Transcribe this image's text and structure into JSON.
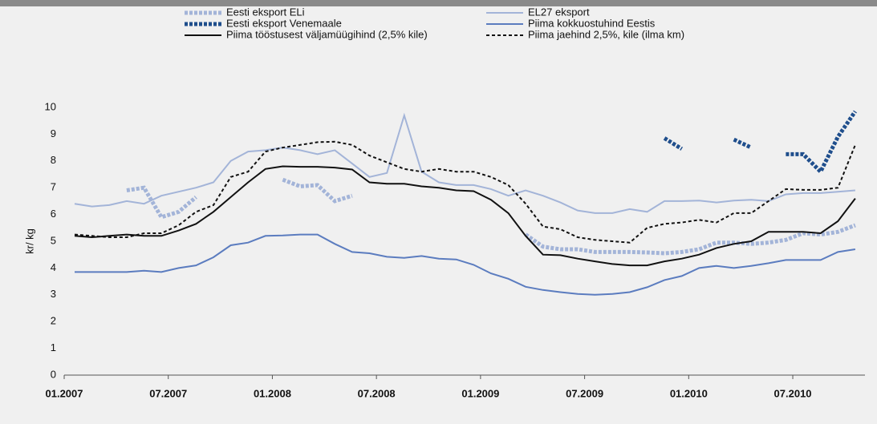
{
  "chart_data": {
    "type": "line",
    "y_label": "kr/ kg",
    "categories": [
      "01.2007",
      null,
      null,
      null,
      null,
      null,
      "07.2007",
      null,
      null,
      null,
      null,
      null,
      "01.2008",
      null,
      null,
      null,
      null,
      null,
      "07.2008",
      null,
      null,
      null,
      null,
      null,
      "01.2009",
      null,
      null,
      null,
      null,
      null,
      "07.2009",
      null,
      null,
      null,
      null,
      null,
      "01.2010",
      null,
      null,
      null,
      null,
      null,
      "07.2010",
      null,
      null,
      null
    ],
    "ylim": [
      0,
      10
    ],
    "yticks": [
      0,
      1,
      2,
      3,
      4,
      5,
      6,
      7,
      8,
      9,
      10
    ],
    "series": [
      {
        "name": "Eesti eksport ELi",
        "color": "#a3b4d8",
        "style": "dotted",
        "values": [
          null,
          null,
          null,
          6.9,
          7.0,
          5.9,
          6.1,
          6.65,
          null,
          null,
          null,
          null,
          7.3,
          7.05,
          7.1,
          6.5,
          6.7,
          null,
          null,
          null,
          null,
          null,
          null,
          null,
          null,
          null,
          5.25,
          4.8,
          4.7,
          4.7,
          4.6,
          4.6,
          4.6,
          4.58,
          4.55,
          4.6,
          4.7,
          4.95,
          4.95,
          4.9,
          4.95,
          5.05,
          5.3,
          5.25,
          5.35,
          5.6
        ]
      },
      {
        "name": "EL27 eksport",
        "color": "#a3b4d8",
        "style": "solid",
        "values": [
          6.4,
          6.3,
          6.35,
          6.5,
          6.4,
          6.7,
          6.85,
          7.0,
          7.2,
          8.0,
          8.35,
          8.4,
          8.5,
          8.4,
          8.25,
          8.4,
          7.9,
          7.4,
          7.55,
          9.7,
          7.6,
          7.2,
          7.1,
          7.1,
          6.95,
          6.7,
          6.9,
          6.7,
          6.45,
          6.15,
          6.05,
          6.05,
          6.2,
          6.1,
          6.5,
          6.5,
          6.52,
          6.45,
          6.52,
          6.55,
          6.5,
          6.75,
          6.8,
          6.8,
          6.85,
          6.9
        ]
      },
      {
        "name": "Eesti eksport Venemaale",
        "color": "#1f4e8c",
        "style": "dotted",
        "values": [
          null,
          null,
          null,
          null,
          null,
          null,
          null,
          null,
          null,
          null,
          null,
          null,
          null,
          null,
          null,
          null,
          null,
          null,
          null,
          null,
          null,
          null,
          null,
          null,
          null,
          null,
          null,
          null,
          null,
          null,
          null,
          null,
          null,
          null,
          8.85,
          8.45,
          null,
          null,
          8.8,
          8.5,
          null,
          8.25,
          8.25,
          7.6,
          8.9,
          9.85
        ]
      },
      {
        "name": "Piima kokkuostuhind Eestis",
        "color": "#5b7cbf",
        "style": "solid",
        "values": [
          3.85,
          3.85,
          3.85,
          3.85,
          3.9,
          3.85,
          4.0,
          4.1,
          4.4,
          4.85,
          4.95,
          5.2,
          5.22,
          5.25,
          5.25,
          4.9,
          4.6,
          4.55,
          4.42,
          4.38,
          4.45,
          4.35,
          4.32,
          4.12,
          3.8,
          3.6,
          3.3,
          3.18,
          3.1,
          3.03,
          3.0,
          3.03,
          3.1,
          3.28,
          3.55,
          3.7,
          4.0,
          4.08,
          4.0,
          4.08,
          4.18,
          4.3,
          4.3,
          4.3,
          4.6,
          4.7
        ]
      },
      {
        "name": "Piima tööstusest väljamüügihind (2,5% kile)",
        "color": "#111111",
        "style": "solid",
        "values": [
          5.2,
          5.15,
          5.2,
          5.25,
          5.2,
          5.2,
          5.4,
          5.65,
          6.1,
          6.65,
          7.2,
          7.7,
          7.8,
          7.78,
          7.78,
          7.75,
          7.68,
          7.2,
          7.15,
          7.15,
          7.05,
          7.0,
          6.9,
          6.87,
          6.55,
          6.05,
          5.2,
          4.5,
          4.48,
          4.35,
          4.25,
          4.15,
          4.1,
          4.1,
          4.25,
          4.35,
          4.5,
          4.75,
          4.9,
          5.0,
          5.35,
          5.35,
          5.35,
          5.3,
          5.75,
          6.6
        ]
      },
      {
        "name": "Piima jaehind 2,5%, kile (ilma km)",
        "color": "#111111",
        "style": "dashed",
        "values": [
          5.25,
          5.2,
          5.15,
          5.15,
          5.3,
          5.3,
          5.6,
          6.1,
          6.35,
          7.4,
          7.6,
          8.35,
          8.5,
          8.6,
          8.7,
          8.72,
          8.6,
          8.2,
          7.95,
          7.7,
          7.6,
          7.7,
          7.6,
          7.6,
          7.4,
          7.1,
          6.4,
          5.55,
          5.45,
          5.15,
          5.05,
          5.0,
          4.95,
          5.5,
          5.65,
          5.7,
          5.8,
          5.7,
          6.05,
          6.05,
          6.5,
          6.95,
          6.92,
          6.92,
          7.0,
          8.6
        ]
      }
    ]
  }
}
